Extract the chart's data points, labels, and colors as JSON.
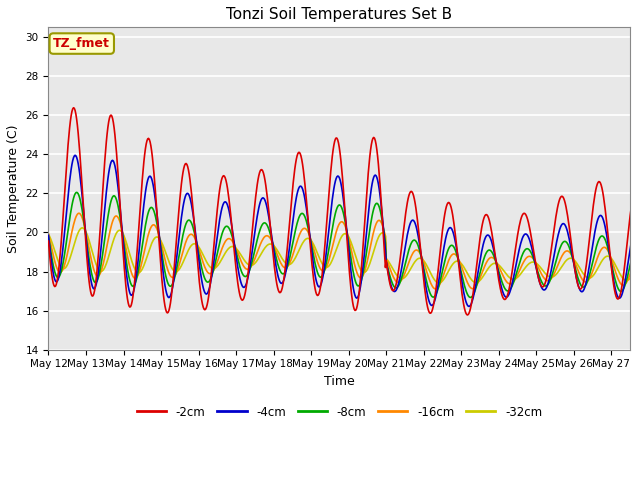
{
  "title": "Tonzi Soil Temperatures Set B",
  "xlabel": "Time",
  "ylabel": "Soil Temperature (C)",
  "ylim": [
    14,
    30.5
  ],
  "yticks": [
    14,
    16,
    18,
    20,
    22,
    24,
    26,
    28,
    30
  ],
  "annotation_label": "TZ_fmet",
  "annotation_color": "#cc0000",
  "annotation_bg": "#ffffcc",
  "annotation_border": "#999900",
  "background_color": "#e8e8e8",
  "grid_color": "white",
  "series_colors": [
    "#dd0000",
    "#0000cc",
    "#00aa00",
    "#ff8800",
    "#cccc00"
  ],
  "series_labels": [
    "-2cm",
    "-4cm",
    "-8cm",
    "-16cm",
    "-32cm"
  ],
  "line_width": 1.2,
  "x_tick_labels": [
    "May 12",
    "May 13",
    "May 14",
    "May 15",
    "May 16",
    "May 17",
    "May 18",
    "May 19",
    "May 20",
    "May 21",
    "May 22",
    "May 23",
    "May 24",
    "May 25",
    "May 26",
    "May 27"
  ]
}
